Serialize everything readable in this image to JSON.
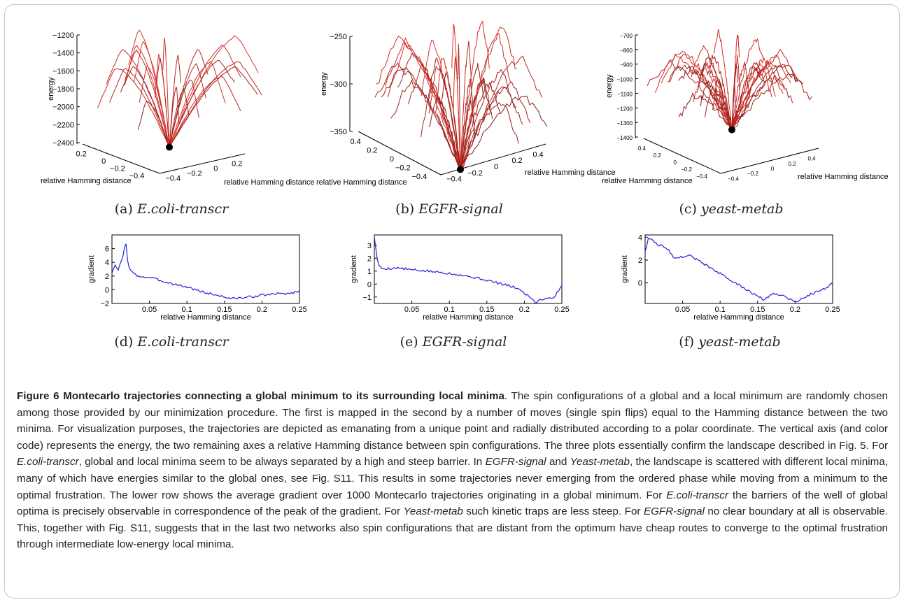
{
  "figure": {
    "subcaptions": [
      {
        "tag": "(a)",
        "name": "E.coli-transcr"
      },
      {
        "tag": "(b)",
        "name": "EGFR-signal"
      },
      {
        "tag": "(c)",
        "name": "yeast-metab"
      },
      {
        "tag": "(d)",
        "name": "E.coli-transcr"
      },
      {
        "tag": "(e)",
        "name": "EGFR-signal"
      },
      {
        "tag": "(f)",
        "name": "yeast-metab"
      }
    ],
    "caption": {
      "title": "Figure 6 Montecarlo trajectories connecting a global minimum to its surrounding local minima",
      "parts": [
        {
          "t": ". The spin configurations of a global and a local minimum are randomly chosen among those provided by our minimization procedure. The first is mapped in the second by a number of moves (single spin flips) equal to the Hamming distance between the two minima. For visualization purposes, the trajectories are depicted as emanating from a unique point and radially distributed according to a polar coordinate. The vertical axis (and color code) represents the energy, the two remaining axes a relative Hamming distance between spin configurations. The three plots essentially confirm the landscape described in Fig. 5. For ",
          "i": false
        },
        {
          "t": "E.coli-transcr",
          "i": true
        },
        {
          "t": ", global and local minima seem to be always separated by a high and steep barrier. In ",
          "i": false
        },
        {
          "t": "EGFR-signal",
          "i": true
        },
        {
          "t": " and ",
          "i": false
        },
        {
          "t": "Yeast-metab",
          "i": true
        },
        {
          "t": ", the landscape is scattered with different local minima, many of which have energies similar to the global ones, see Fig. S11. This results in some trajectories never emerging from the ordered phase while moving from a minimum to the optimal frustration. The lower row shows the average gradient over 1000 Montecarlo trajectories originating in a global minimum. For ",
          "i": false
        },
        {
          "t": "E.coli-transcr",
          "i": true
        },
        {
          "t": " the barriers of the well of global optima is precisely observable in correspondence of the peak of the gradient. For ",
          "i": false
        },
        {
          "t": "Yeast-metab",
          "i": true
        },
        {
          "t": " such kinetic traps are less steep. For ",
          "i": false
        },
        {
          "t": "EGFR-signal",
          "i": true
        },
        {
          "t": " no clear boundary at all is observable. This, together with Fig. S11, suggests that in the last two networks also spin configurations that are distant from the optimum have cheap routes to converge to the optimal frustration through intermediate low-energy local minima.",
          "i": false
        }
      ]
    }
  },
  "chart_data": [
    {
      "type": "line",
      "panel": "a",
      "zlabel": "energy",
      "xlabel": "relative Hamming distance",
      "ylabel": "relative Hamming distance",
      "zticks": [
        -1200,
        -1400,
        -1600,
        -1800,
        -2000,
        -2200,
        -2400
      ],
      "left_ticks": [
        "0.2",
        "0",
        "−0.2",
        "−0.4"
      ],
      "right_ticks": [
        "0.2",
        "0",
        "−0.2",
        "−0.4"
      ],
      "trajectories": 26,
      "energy_min": -2450,
      "energy_max": -1250,
      "colors": [
        "#1a0000",
        "#e0302a"
      ]
    },
    {
      "type": "line",
      "panel": "b",
      "zlabel": "energy",
      "xlabel": "relative Hamming distance",
      "ylabel": "relative Hamming distance",
      "zticks": [
        -250,
        -300,
        -350
      ],
      "left_ticks": [
        "0.4",
        "0.2",
        "0",
        "−0.2",
        "−0.4"
      ],
      "right_ticks": [
        "0.4",
        "0.2",
        "0",
        "−0.2",
        "−0.4"
      ],
      "trajectories": 34,
      "energy_min": -390,
      "energy_max": -240,
      "colors": [
        "#1a0000",
        "#e0302a"
      ]
    },
    {
      "type": "line",
      "panel": "c",
      "zlabel": "energy",
      "xlabel": "relative Hamming distance",
      "ylabel": "relative Hamming distance",
      "zticks": [
        -700,
        -800,
        -900,
        -1000,
        -1100,
        -1200,
        -1300,
        -1400
      ],
      "left_ticks": [
        "0.4",
        "0.2",
        "0",
        "−0.2",
        "−0.4"
      ],
      "right_ticks": [
        "0.4",
        "0.2",
        "0",
        "−0.2",
        "−0.4"
      ],
      "trajectories": 34,
      "energy_min": -1350,
      "energy_max": -760,
      "colors": [
        "#1a0000",
        "#e0302a"
      ]
    },
    {
      "type": "line",
      "panel": "d",
      "xlabel": "relative Hamming distance",
      "ylabel": "gradient",
      "xlim": [
        0,
        0.25
      ],
      "ylim": [
        -2,
        8
      ],
      "xticks": [
        0.05,
        0.1,
        0.15,
        0.2,
        0.25
      ],
      "xtick_labels": [
        "0.05",
        "0.1",
        "0.15",
        "0.2",
        "0.25"
      ],
      "yticks": [
        -2,
        0,
        2,
        4,
        6
      ],
      "ytick_labels": [
        "−2",
        "0",
        "2",
        "4",
        "6"
      ],
      "color": "#1f1fd8",
      "x": [
        0,
        0.004,
        0.008,
        0.012,
        0.015,
        0.018,
        0.022,
        0.03,
        0.04,
        0.05,
        0.06,
        0.08,
        0.1,
        0.12,
        0.14,
        0.16,
        0.18,
        0.2,
        0.22,
        0.24,
        0.25
      ],
      "y": [
        2.5,
        3.5,
        2.8,
        4.0,
        5.0,
        7.4,
        3.2,
        2.2,
        1.9,
        1.8,
        1.5,
        0.9,
        0.4,
        -0.3,
        -0.8,
        -1.3,
        -1.1,
        -0.8,
        -0.6,
        -0.5,
        -0.1
      ]
    },
    {
      "type": "line",
      "panel": "e",
      "xlabel": "relative Hamming distance",
      "ylabel": "gradient",
      "xlim": [
        0,
        0.25
      ],
      "ylim": [
        -1.5,
        3.8
      ],
      "xticks": [
        0.05,
        0.1,
        0.15,
        0.2,
        0.25
      ],
      "xtick_labels": [
        "0.05",
        "0.1",
        "0.15",
        "0.2",
        "0.25"
      ],
      "yticks": [
        -1,
        0,
        1,
        2,
        3
      ],
      "ytick_labels": [
        "−1",
        "0",
        "1",
        "2",
        "3"
      ],
      "color": "#1f1fd8",
      "x": [
        0,
        0.003,
        0.006,
        0.01,
        0.02,
        0.03,
        0.05,
        0.07,
        0.09,
        0.11,
        0.13,
        0.15,
        0.17,
        0.19,
        0.2,
        0.21,
        0.215,
        0.22,
        0.23,
        0.24,
        0.25
      ],
      "y": [
        3.7,
        2.2,
        1.4,
        1.2,
        1.2,
        1.25,
        1.1,
        1.0,
        0.9,
        0.75,
        0.55,
        0.3,
        0.0,
        -0.3,
        -0.7,
        -1.1,
        -1.45,
        -1.2,
        -1.1,
        -1.0,
        -0.1
      ]
    },
    {
      "type": "line",
      "panel": "f",
      "xlabel": "relative Hamming distance",
      "ylabel": "gradient",
      "xlim": [
        0,
        0.25
      ],
      "ylim": [
        -1.8,
        4.2
      ],
      "xticks": [
        0.05,
        0.1,
        0.15,
        0.2,
        0.25
      ],
      "xtick_labels": [
        "0.05",
        "0.1",
        "0.15",
        "0.2",
        "0.25"
      ],
      "yticks": [
        0,
        2,
        4
      ],
      "ytick_labels": [
        "0",
        "2",
        "4"
      ],
      "color": "#1f1fd8",
      "x": [
        0,
        0.005,
        0.01,
        0.015,
        0.02,
        0.03,
        0.04,
        0.05,
        0.06,
        0.07,
        0.08,
        0.1,
        0.12,
        0.14,
        0.16,
        0.17,
        0.18,
        0.19,
        0.2,
        0.22,
        0.24,
        0.25
      ],
      "y": [
        2.8,
        4.0,
        3.8,
        3.4,
        3.3,
        3.0,
        2.1,
        2.3,
        2.4,
        2.0,
        1.6,
        0.8,
        0.0,
        -0.8,
        -1.5,
        -0.9,
        -1.0,
        -1.3,
        -1.7,
        -1.0,
        -0.5,
        0.0
      ]
    }
  ]
}
